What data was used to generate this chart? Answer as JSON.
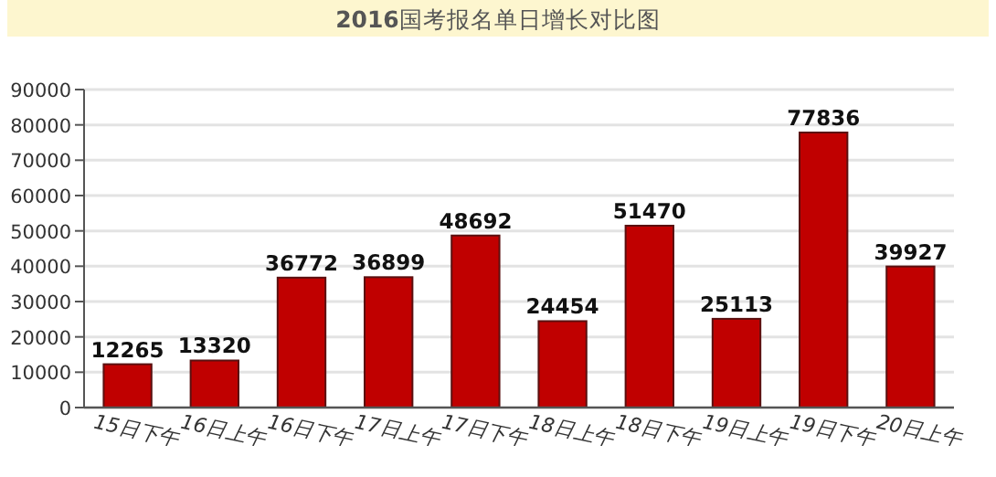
{
  "chart_data": {
    "type": "bar",
    "title": "**2016**国考报名单日增长对比图",
    "categories": [
      "15日下午",
      "16日上午",
      "16日下午",
      "17日上午",
      "17日下午",
      "18日上午",
      "18日下午",
      "19日上午",
      "19日下午",
      "20日上午"
    ],
    "values": [
      12265,
      13320,
      36772,
      36899,
      48692,
      24454,
      51470,
      25113,
      77836,
      39927
    ],
    "color": "#c00000",
    "ylim": [
      0,
      90000
    ],
    "yticks": [
      0,
      10000,
      20000,
      30000,
      40000,
      50000,
      60000,
      70000,
      80000,
      90000
    ],
    "grid": "y",
    "data_labels": true
  }
}
